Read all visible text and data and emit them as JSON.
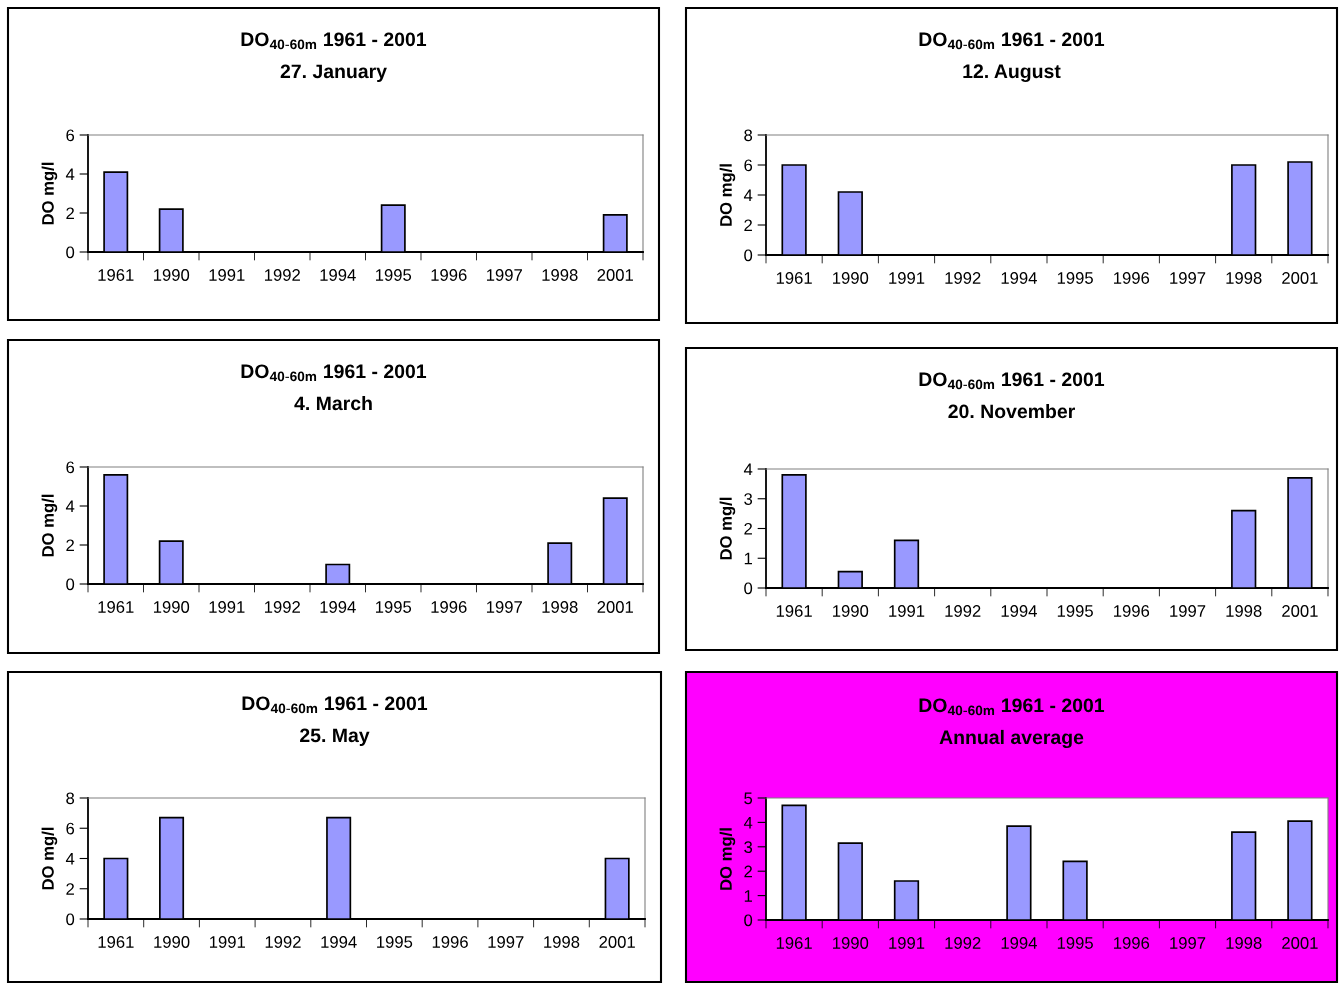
{
  "chart_data": [
    {
      "type": "bar",
      "title": "DO$_{40-60m}$ 1961 - 2001",
      "subtitle": "27. January",
      "ylabel": "DO mg/l",
      "categories": [
        "1961",
        "1990",
        "1991",
        "1992",
        "1994",
        "1995",
        "1996",
        "1997",
        "1998",
        "2001"
      ],
      "color": "#9999ff",
      "values": [
        4.1,
        2.2,
        null,
        null,
        null,
        2.4,
        null,
        null,
        null,
        1.9
      ],
      "ylim": [
        0,
        6
      ],
      "yticks": [
        0,
        2,
        4,
        6
      ],
      "grid": false,
      "legend": false
    },
    {
      "type": "bar",
      "title": "DO$_{40-60m}$ 1961 - 2001",
      "subtitle": "12. August",
      "ylabel": "DO mg/l",
      "categories": [
        "1961",
        "1990",
        "1991",
        "1992",
        "1994",
        "1995",
        "1996",
        "1997",
        "1998",
        "2001"
      ],
      "color": "#9999ff",
      "values": [
        6.0,
        4.2,
        null,
        null,
        null,
        null,
        null,
        null,
        6.0,
        6.2
      ],
      "ylim": [
        0,
        8
      ],
      "yticks": [
        0,
        2,
        4,
        6,
        8
      ],
      "grid": false,
      "legend": false
    },
    {
      "type": "bar",
      "title": "DO$_{40-60m}$ 1961 - 2001",
      "subtitle": "4. March",
      "ylabel": "DO mg/l",
      "categories": [
        "1961",
        "1990",
        "1991",
        "1992",
        "1994",
        "1995",
        "1996",
        "1997",
        "1998",
        "2001"
      ],
      "color": "#9999ff",
      "values": [
        5.6,
        2.2,
        null,
        null,
        1.0,
        null,
        null,
        null,
        2.1,
        4.4
      ],
      "ylim": [
        0,
        6
      ],
      "yticks": [
        0,
        2,
        4,
        6
      ],
      "grid": false,
      "legend": false
    },
    {
      "type": "bar",
      "title": "DO$_{40-60m}$ 1961 - 2001",
      "subtitle": "20. November",
      "ylabel": "DO mg/l",
      "categories": [
        "1961",
        "1990",
        "1991",
        "1992",
        "1994",
        "1995",
        "1996",
        "1997",
        "1998",
        "2001"
      ],
      "color": "#9999ff",
      "values": [
        3.8,
        0.55,
        1.6,
        null,
        null,
        null,
        null,
        null,
        2.6,
        3.7
      ],
      "ylim": [
        0,
        4
      ],
      "yticks": [
        0,
        1,
        2,
        3,
        4
      ],
      "grid": false,
      "legend": false
    },
    {
      "type": "bar",
      "title": "DO$_{40-60m}$ 1961 - 2001",
      "subtitle": "25. May",
      "ylabel": "DO mg/l",
      "categories": [
        "1961",
        "1990",
        "1991",
        "1992",
        "1994",
        "1995",
        "1996",
        "1997",
        "1998",
        "2001"
      ],
      "color": "#9999ff",
      "values": [
        4.0,
        6.7,
        null,
        null,
        6.7,
        null,
        null,
        null,
        null,
        4.0
      ],
      "ylim": [
        0,
        8
      ],
      "yticks": [
        0,
        2,
        4,
        6,
        8
      ],
      "grid": false,
      "legend": false
    },
    {
      "type": "bar",
      "title": "DO$_{40-60m}$ 1961 - 2001",
      "subtitle": "Annual average",
      "ylabel": "DO mg/l",
      "categories": [
        "1961",
        "1990",
        "1991",
        "1992",
        "1994",
        "1995",
        "1996",
        "1997",
        "1998",
        "2001"
      ],
      "color": "#9999ff",
      "values": [
        4.7,
        3.15,
        1.6,
        null,
        3.85,
        2.4,
        null,
        null,
        3.6,
        4.05
      ],
      "ylim": [
        0,
        5
      ],
      "yticks": [
        0,
        1,
        2,
        3,
        4,
        5
      ],
      "grid": false,
      "legend": false
    }
  ]
}
